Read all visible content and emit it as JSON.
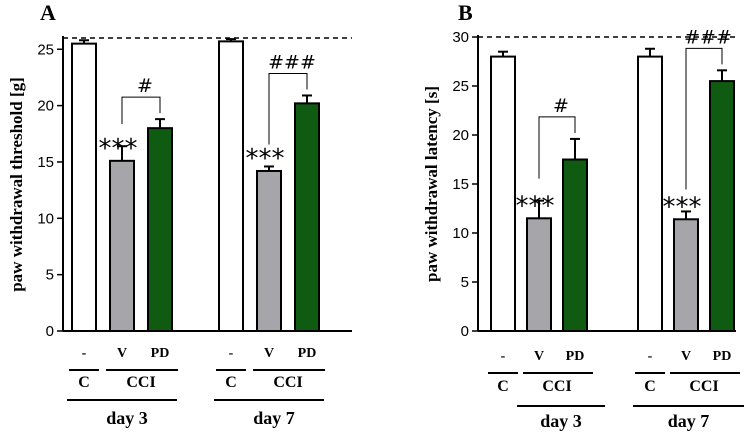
{
  "colors": {
    "control": "#ffffff",
    "vehicle": "#a6a6aa",
    "pd": "#0f5b12",
    "axis": "#000000"
  },
  "chart_data": [
    {
      "type": "bar",
      "panel_label": "A",
      "ylabel": "paw withdrawal threshold  [g]",
      "ylim": [
        0,
        26
      ],
      "yticks": [
        0,
        5,
        10,
        15,
        20,
        25
      ],
      "cutoff": 26,
      "days": [
        {
          "label": "day 3",
          "groups": {
            "c": "C",
            "cci": "CCI"
          },
          "bars": [
            {
              "condition": "-",
              "value": 25.5,
              "error": 0.3,
              "color_key": "control",
              "stars": ""
            },
            {
              "condition": "V",
              "value": 15.1,
              "error": 1.3,
              "color_key": "vehicle",
              "stars": "***"
            },
            {
              "condition": "PD",
              "value": 18.0,
              "error": 0.8,
              "color_key": "pd",
              "stars": ""
            }
          ],
          "comparison": {
            "mark": "#",
            "from_bar": 1,
            "to_bar": 2
          }
        },
        {
          "label": "day 7",
          "groups": {
            "c": "C",
            "cci": "CCI"
          },
          "bars": [
            {
              "condition": "-",
              "value": 25.7,
              "error": 0.2,
              "color_key": "control",
              "stars": ""
            },
            {
              "condition": "V",
              "value": 14.2,
              "error": 0.4,
              "color_key": "vehicle",
              "stars": "***"
            },
            {
              "condition": "PD",
              "value": 20.2,
              "error": 0.7,
              "color_key": "pd",
              "stars": ""
            }
          ],
          "comparison": {
            "mark": "###",
            "from_bar": 1,
            "to_bar": 2
          }
        }
      ]
    },
    {
      "type": "bar",
      "panel_label": "B",
      "ylabel": "paw withdrawal latency  [s]",
      "ylim": [
        0,
        30
      ],
      "yticks": [
        0,
        5,
        10,
        15,
        20,
        25,
        30
      ],
      "cutoff": 30,
      "days": [
        {
          "label": "day 3",
          "groups": {
            "c": "C",
            "cci": "CCI"
          },
          "bars": [
            {
              "condition": "-",
              "value": 28.0,
              "error": 0.5,
              "color_key": "control",
              "stars": ""
            },
            {
              "condition": "V",
              "value": 11.5,
              "error": 1.8,
              "color_key": "vehicle",
              "stars": "***"
            },
            {
              "condition": "PD",
              "value": 17.5,
              "error": 2.1,
              "color_key": "pd",
              "stars": ""
            }
          ],
          "comparison": {
            "mark": "#",
            "from_bar": 1,
            "to_bar": 2
          }
        },
        {
          "label": "day 7",
          "groups": {
            "c": "C",
            "cci": "CCI"
          },
          "bars": [
            {
              "condition": "-",
              "value": 28.0,
              "error": 0.8,
              "color_key": "control",
              "stars": ""
            },
            {
              "condition": "V",
              "value": 11.4,
              "error": 0.8,
              "color_key": "vehicle",
              "stars": "***"
            },
            {
              "condition": "PD",
              "value": 25.5,
              "error": 1.1,
              "color_key": "pd",
              "stars": ""
            }
          ],
          "comparison": {
            "mark": "###",
            "from_bar": 1,
            "to_bar": 2
          }
        }
      ]
    }
  ]
}
